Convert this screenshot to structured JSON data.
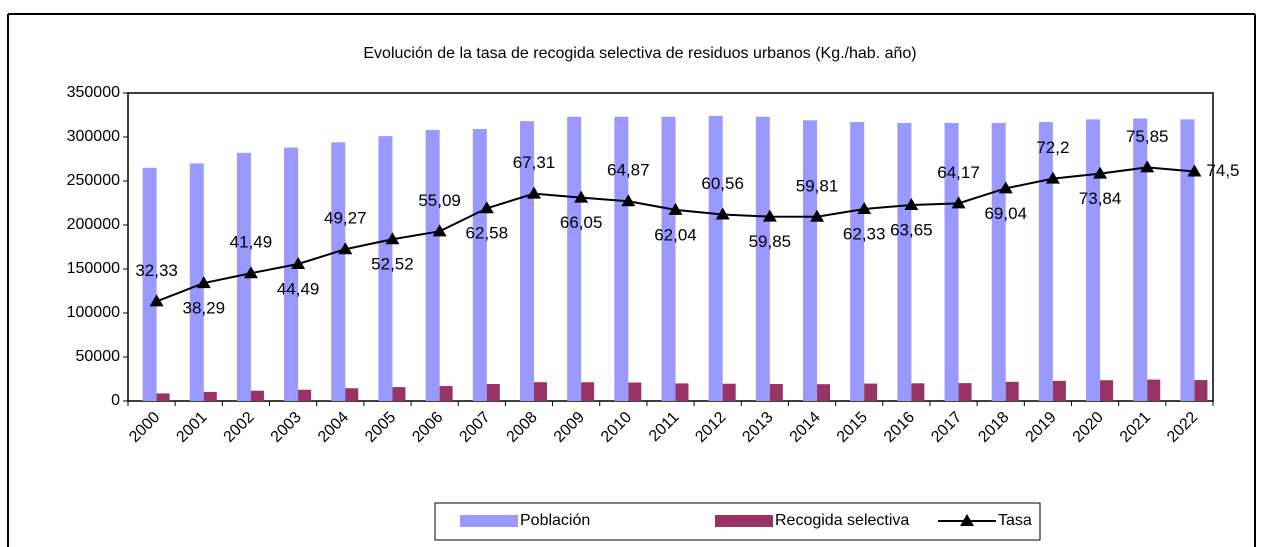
{
  "chart_data": {
    "type": "bar_line",
    "title": "Evolución de la tasa de recogida selectiva de residuos urbanos (Kg./hab. año)",
    "categories": [
      "2000",
      "2001",
      "2002",
      "2003",
      "2004",
      "2005",
      "2006",
      "2007",
      "2008",
      "2009",
      "2010",
      "2011",
      "2012",
      "2013",
      "2014",
      "2015",
      "2016",
      "2017",
      "2018",
      "2019",
      "2020",
      "2021",
      "2022"
    ],
    "series": [
      {
        "name": "Población",
        "type": "bar",
        "color": "#9999ff",
        "values": [
          265000,
          270000,
          282000,
          288000,
          294000,
          301000,
          308000,
          309000,
          318000,
          323000,
          323000,
          323000,
          324000,
          323000,
          319000,
          317000,
          316000,
          316000,
          316000,
          317000,
          320000,
          321000,
          320000
        ]
      },
      {
        "name": "Recogida selectiva",
        "type": "bar",
        "color": "#993366",
        "values": [
          8600,
          10300,
          11700,
          12800,
          14500,
          15800,
          17000,
          19300,
          21400,
          21300,
          21000,
          20000,
          19600,
          19300,
          19100,
          19800,
          20100,
          20300,
          21800,
          22900,
          23600,
          24300,
          23800
        ]
      },
      {
        "name": "Tasa",
        "type": "line",
        "axis": "y2",
        "color": "#000000",
        "values": [
          32.33,
          38.29,
          41.49,
          44.49,
          49.27,
          52.52,
          55.09,
          62.58,
          67.31,
          66.05,
          64.87,
          62.04,
          60.56,
          59.85,
          59.81,
          62.33,
          63.65,
          64.17,
          69.04,
          72.2,
          73.84,
          75.85,
          74.5
        ],
        "value_labels": [
          "32,33",
          "38,29",
          "41,49",
          "44,49",
          "49,27",
          "52,52",
          "55,09",
          "62,58",
          "67,31",
          "66,05",
          "64,87",
          "62,04",
          "60,56",
          "59,85",
          "59,81",
          "62,33",
          "63,65",
          "64,17",
          "69,04",
          "72,2",
          "73,84",
          "75,85",
          "74,5"
        ]
      }
    ],
    "ylim": [
      0,
      350000
    ],
    "yticks": [
      0,
      50000,
      100000,
      150000,
      200000,
      250000,
      300000,
      350000
    ],
    "y2lim": [
      0,
      100
    ],
    "legend": "bottom"
  }
}
